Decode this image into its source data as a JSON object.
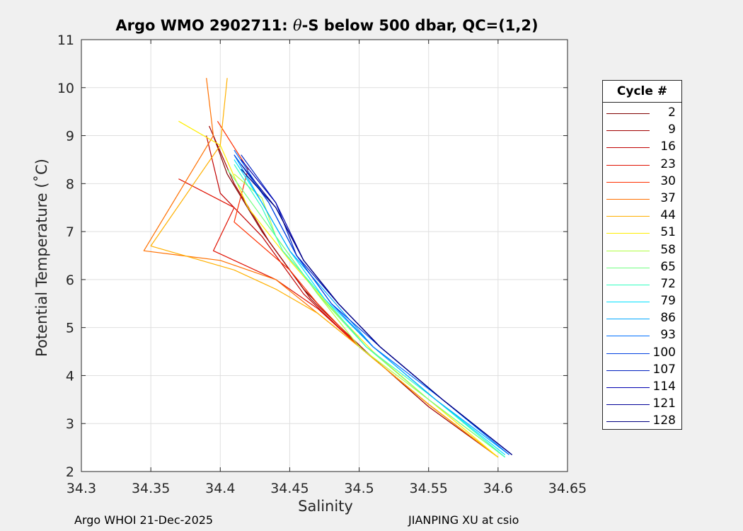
{
  "title_prefix": "Argo WMO 2902711: ",
  "title_theta": "θ",
  "title_suffix": "-S below 500 dbar,  QC=(1,2)",
  "footer": {
    "left": "Argo WHOI 21-Dec-2025",
    "right": "JIANPING XU at csio"
  },
  "legend": {
    "title": "Cycle #",
    "entries": [
      {
        "label": "2",
        "color": "#800000"
      },
      {
        "label": "9",
        "color": "#a00000"
      },
      {
        "label": "16",
        "color": "#c00000"
      },
      {
        "label": "23",
        "color": "#e01000"
      },
      {
        "label": "30",
        "color": "#ff3000"
      },
      {
        "label": "37",
        "color": "#ff7000"
      },
      {
        "label": "44",
        "color": "#ffb000"
      },
      {
        "label": "51",
        "color": "#ffee00"
      },
      {
        "label": "58",
        "color": "#b0ff40"
      },
      {
        "label": "65",
        "color": "#70ff80"
      },
      {
        "label": "72",
        "color": "#30ffc0"
      },
      {
        "label": "79",
        "color": "#00e0ff"
      },
      {
        "label": "86",
        "color": "#00a8ff"
      },
      {
        "label": "93",
        "color": "#0070ff"
      },
      {
        "label": "100",
        "color": "#0040e0"
      },
      {
        "label": "107",
        "color": "#0020c0"
      },
      {
        "label": "114",
        "color": "#0000b0"
      },
      {
        "label": "121",
        "color": "#000098"
      },
      {
        "label": "128",
        "color": "#000080"
      }
    ]
  },
  "chart_data": {
    "type": "line",
    "xlabel": "Salinity",
    "ylabel": "Potential Temperature (˚C)",
    "xlim": [
      34.3,
      34.65
    ],
    "ylim": [
      2,
      11
    ],
    "xticks": [
      "34.3",
      "34.35",
      "34.4",
      "34.45",
      "34.5",
      "34.55",
      "34.6",
      "34.65"
    ],
    "yticks": [
      "2",
      "3",
      "4",
      "5",
      "6",
      "7",
      "8",
      "9",
      "10",
      "11"
    ],
    "grid": true,
    "legend_position": "right-outside",
    "series": [
      {
        "name": "2",
        "color": "#800000",
        "x": [
          34.395,
          34.405,
          34.43,
          34.46,
          34.5,
          34.55,
          34.6
        ],
        "y": [
          9.0,
          8.2,
          7.0,
          5.8,
          4.6,
          3.4,
          2.3
        ]
      },
      {
        "name": "9",
        "color": "#a00000",
        "x": [
          34.392,
          34.41,
          34.435,
          34.465,
          34.505,
          34.55,
          34.6
        ],
        "y": [
          9.2,
          8.0,
          6.8,
          5.6,
          4.5,
          3.35,
          2.3
        ]
      },
      {
        "name": "16",
        "color": "#c00000",
        "x": [
          34.39,
          34.4,
          34.43,
          34.46,
          34.5,
          34.55,
          34.6
        ],
        "y": [
          9.0,
          7.8,
          6.9,
          5.7,
          4.6,
          3.4,
          2.3
        ]
      },
      {
        "name": "23",
        "color": "#e01000",
        "x": [
          34.37,
          34.41,
          34.395,
          34.44,
          34.47,
          34.5,
          34.55,
          34.6
        ],
        "y": [
          8.1,
          7.5,
          6.6,
          6.0,
          5.4,
          4.6,
          3.4,
          2.3
        ]
      },
      {
        "name": "30",
        "color": "#ff3000",
        "x": [
          34.398,
          34.42,
          34.41,
          34.45,
          34.47,
          34.5,
          34.55,
          34.6
        ],
        "y": [
          9.3,
          8.3,
          7.2,
          6.2,
          5.5,
          4.6,
          3.4,
          2.3
        ]
      },
      {
        "name": "37",
        "color": "#ff7000",
        "x": [
          34.39,
          34.395,
          34.345,
          34.4,
          34.44,
          34.47,
          34.5,
          34.55,
          34.6
        ],
        "y": [
          10.2,
          9.0,
          6.6,
          6.4,
          6.0,
          5.3,
          4.6,
          3.4,
          2.3
        ]
      },
      {
        "name": "44",
        "color": "#ffb000",
        "x": [
          34.405,
          34.4,
          34.35,
          34.41,
          34.44,
          34.47,
          34.5,
          34.55,
          34.6
        ],
        "y": [
          10.2,
          8.8,
          6.7,
          6.2,
          5.8,
          5.3,
          4.6,
          3.4,
          2.3
        ]
      },
      {
        "name": "51",
        "color": "#ffee00",
        "x": [
          34.37,
          34.4,
          34.42,
          34.45,
          34.48,
          34.51,
          34.55,
          34.6
        ],
        "y": [
          9.3,
          8.8,
          7.5,
          6.4,
          5.4,
          4.5,
          3.5,
          2.3
        ]
      },
      {
        "name": "58",
        "color": "#b0ff40",
        "x": [
          34.41,
          34.43,
          34.44,
          34.47,
          34.5,
          34.55,
          34.605
        ],
        "y": [
          8.2,
          7.7,
          6.9,
          5.7,
          4.6,
          3.5,
          2.3
        ]
      },
      {
        "name": "65",
        "color": "#70ff80",
        "x": [
          34.405,
          34.425,
          34.445,
          34.47,
          34.505,
          34.55,
          34.605
        ],
        "y": [
          8.3,
          7.5,
          6.7,
          5.7,
          4.6,
          3.5,
          2.3
        ]
      },
      {
        "name": "72",
        "color": "#30ffc0",
        "x": [
          34.41,
          34.43,
          34.445,
          34.475,
          34.505,
          34.555,
          34.605
        ],
        "y": [
          8.4,
          7.5,
          6.6,
          5.6,
          4.6,
          3.5,
          2.3
        ]
      },
      {
        "name": "79",
        "color": "#00e0ff",
        "x": [
          34.41,
          34.43,
          34.45,
          34.475,
          34.51,
          34.555,
          34.605
        ],
        "y": [
          8.5,
          7.6,
          6.6,
          5.6,
          4.6,
          3.5,
          2.35
        ]
      },
      {
        "name": "86",
        "color": "#00a8ff",
        "x": [
          34.41,
          34.43,
          34.45,
          34.48,
          34.51,
          34.555,
          34.608
        ],
        "y": [
          8.6,
          7.6,
          6.6,
          5.6,
          4.6,
          3.5,
          2.35
        ]
      },
      {
        "name": "93",
        "color": "#0070ff",
        "x": [
          34.41,
          34.435,
          34.455,
          34.48,
          34.51,
          34.56,
          34.608
        ],
        "y": [
          8.7,
          7.6,
          6.5,
          5.5,
          4.6,
          3.5,
          2.35
        ]
      },
      {
        "name": "100",
        "color": "#0040e0",
        "x": [
          34.41,
          34.435,
          34.455,
          34.48,
          34.515,
          34.56,
          34.61
        ],
        "y": [
          8.6,
          7.6,
          6.5,
          5.5,
          4.6,
          3.5,
          2.35
        ]
      },
      {
        "name": "107",
        "color": "#0020c0",
        "x": [
          34.415,
          34.44,
          34.455,
          34.485,
          34.515,
          34.56,
          34.61
        ],
        "y": [
          8.6,
          7.6,
          6.5,
          5.5,
          4.6,
          3.5,
          2.35
        ]
      },
      {
        "name": "114",
        "color": "#0000b0",
        "x": [
          34.415,
          34.44,
          34.46,
          34.485,
          34.515,
          34.56,
          34.61
        ],
        "y": [
          8.5,
          7.6,
          6.4,
          5.5,
          4.6,
          3.5,
          2.35
        ]
      },
      {
        "name": "121",
        "color": "#000098",
        "x": [
          34.415,
          34.44,
          34.46,
          34.485,
          34.515,
          34.56,
          34.61
        ],
        "y": [
          8.4,
          7.5,
          6.4,
          5.5,
          4.6,
          3.5,
          2.35
        ]
      },
      {
        "name": "128",
        "color": "#000080",
        "x": [
          34.415,
          34.44,
          34.46,
          34.485,
          34.515,
          34.56,
          34.61
        ],
        "y": [
          8.3,
          7.5,
          6.4,
          5.5,
          4.6,
          3.5,
          2.35
        ]
      }
    ]
  }
}
